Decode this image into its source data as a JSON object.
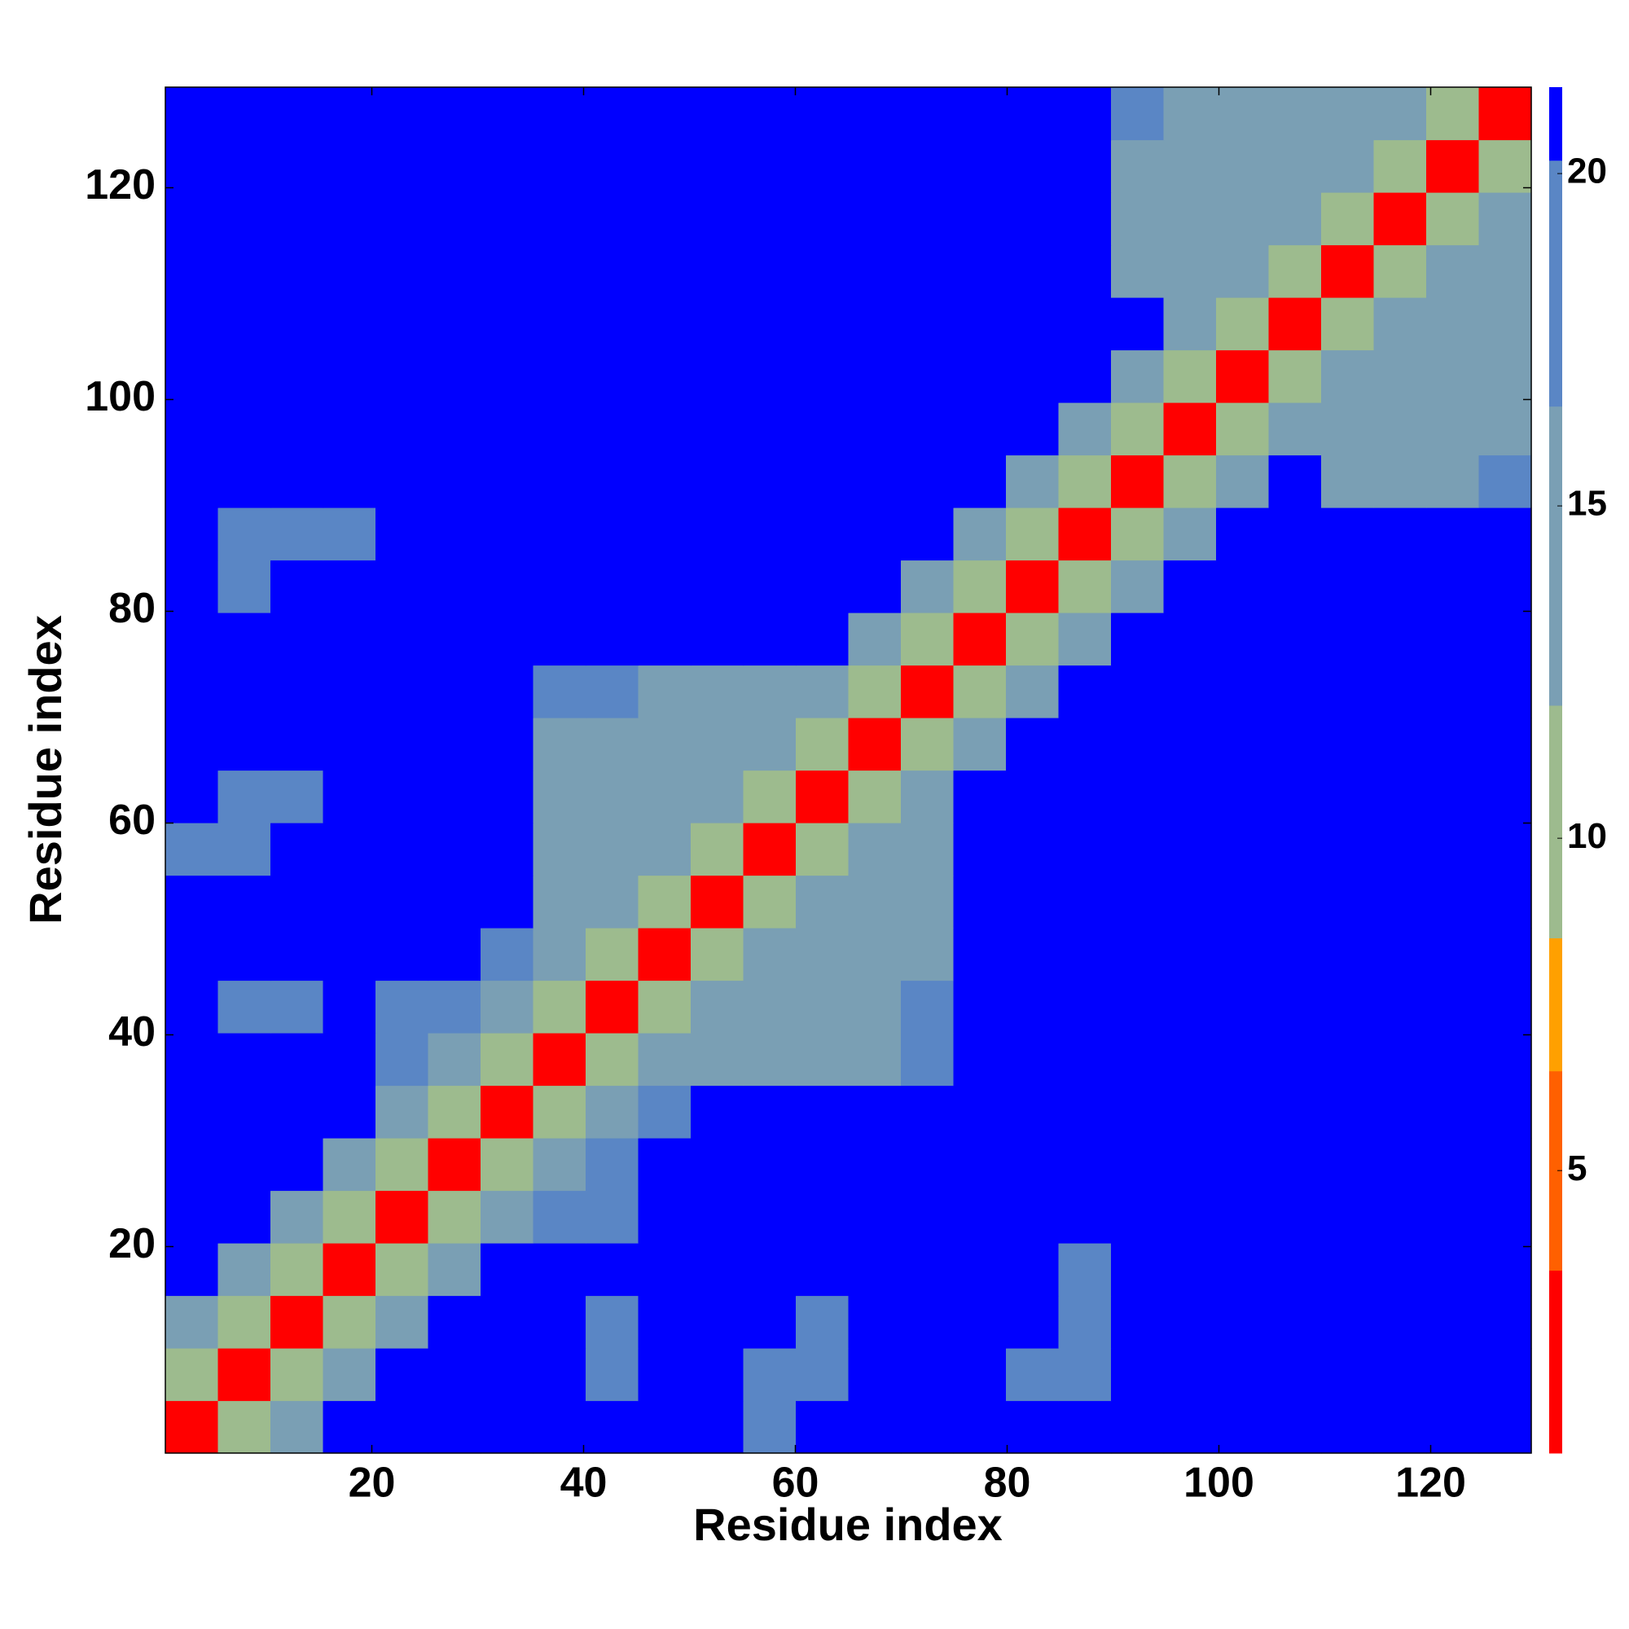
{
  "chart_data": {
    "type": "heatmap",
    "x_label": "Residue index",
    "y_label": "Residue index",
    "xlim": [
      0.5,
      129.5
    ],
    "ylim": [
      0.5,
      129.5
    ],
    "xticks": [
      20,
      40,
      60,
      80,
      100,
      120
    ],
    "yticks": [
      20,
      40,
      60,
      80,
      100,
      120
    ],
    "color_bounds": [
      0.75,
      3.5,
      6.5,
      8.5,
      12,
      16.5,
      20.2,
      21.3
    ],
    "colors": [
      "#ff0000",
      "#ff6000",
      "#ffa000",
      "#9dbb8e",
      "#7a9fb4",
      "#5a86c5",
      "#0000ff"
    ],
    "cticks": [
      5,
      10,
      15,
      20
    ],
    "values": [
      [
        3,
        9,
        16,
        22,
        22,
        22,
        22,
        22,
        22,
        22,
        22,
        20,
        22,
        22,
        22,
        22,
        22,
        22,
        22,
        22,
        22,
        22,
        22,
        22,
        22,
        22
      ],
      [
        9,
        3,
        9,
        16,
        22,
        22,
        22,
        22,
        19,
        22,
        22,
        19,
        19,
        22,
        22,
        22,
        18,
        20,
        22,
        22,
        22,
        22,
        22,
        22,
        22,
        22
      ],
      [
        16,
        9,
        3,
        9,
        16,
        22,
        22,
        22,
        20,
        22,
        22,
        22,
        19,
        22,
        22,
        22,
        22,
        19,
        22,
        22,
        22,
        22,
        22,
        22,
        22,
        22
      ],
      [
        22,
        16,
        9,
        3,
        9,
        16,
        22,
        22,
        22,
        22,
        22,
        22,
        22,
        22,
        22,
        22,
        22,
        19,
        22,
        22,
        22,
        22,
        22,
        22,
        22,
        22
      ],
      [
        22,
        22,
        16,
        9,
        3,
        9,
        13,
        18,
        20,
        22,
        22,
        22,
        22,
        22,
        22,
        22,
        22,
        22,
        22,
        22,
        22,
        22,
        22,
        22,
        22,
        22
      ],
      [
        22,
        22,
        22,
        16,
        9,
        3,
        9,
        13,
        18,
        22,
        22,
        22,
        22,
        22,
        22,
        22,
        22,
        22,
        22,
        22,
        22,
        22,
        22,
        22,
        22,
        22
      ],
      [
        22,
        22,
        22,
        22,
        13,
        9,
        3,
        9,
        13,
        18,
        22,
        22,
        22,
        22,
        22,
        22,
        22,
        22,
        22,
        22,
        22,
        22,
        22,
        22,
        22,
        22
      ],
      [
        22,
        22,
        22,
        22,
        18,
        13,
        9,
        3,
        9,
        13,
        15,
        14,
        14,
        16,
        19,
        22,
        22,
        22,
        22,
        22,
        22,
        22,
        22,
        22,
        22,
        22
      ],
      [
        22,
        19,
        20,
        22,
        20,
        18,
        13,
        9,
        3,
        9,
        13,
        13,
        12,
        14,
        18,
        22,
        22,
        22,
        22,
        22,
        22,
        22,
        22,
        22,
        22,
        22
      ],
      [
        22,
        22,
        22,
        22,
        22,
        22,
        18,
        13,
        9,
        3,
        9,
        13,
        13,
        14,
        16,
        22,
        22,
        22,
        22,
        22,
        22,
        22,
        22,
        22,
        22,
        22
      ],
      [
        22,
        22,
        22,
        22,
        22,
        22,
        22,
        15,
        13,
        9,
        3,
        9,
        16,
        14,
        15,
        22,
        22,
        22,
        22,
        22,
        22,
        22,
        22,
        22,
        22,
        22
      ],
      [
        20,
        19,
        22,
        22,
        22,
        22,
        22,
        14,
        13,
        13,
        9,
        3,
        9,
        16,
        16,
        22,
        22,
        22,
        22,
        22,
        22,
        22,
        22,
        22,
        22,
        22
      ],
      [
        22,
        19,
        19,
        22,
        22,
        22,
        22,
        14,
        12,
        13,
        16,
        9,
        3,
        9,
        16,
        22,
        22,
        22,
        22,
        22,
        22,
        22,
        22,
        22,
        22,
        22
      ],
      [
        22,
        22,
        22,
        22,
        22,
        22,
        22,
        16,
        14,
        14,
        14,
        16,
        9,
        3,
        9,
        16,
        22,
        22,
        22,
        22,
        22,
        22,
        22,
        22,
        22,
        22
      ],
      [
        22,
        22,
        22,
        22,
        22,
        22,
        22,
        19,
        18,
        16,
        15,
        16,
        16,
        9,
        3,
        9,
        16,
        22,
        22,
        22,
        22,
        22,
        22,
        22,
        22,
        22
      ],
      [
        22,
        22,
        22,
        22,
        22,
        22,
        22,
        22,
        22,
        22,
        22,
        22,
        22,
        16,
        9,
        3,
        9,
        16,
        22,
        22,
        22,
        22,
        22,
        22,
        22,
        22
      ],
      [
        22,
        18,
        22,
        22,
        22,
        22,
        22,
        22,
        22,
        22,
        22,
        22,
        22,
        22,
        16,
        9,
        3,
        9,
        16,
        22,
        22,
        22,
        22,
        22,
        22,
        22
      ],
      [
        22,
        20,
        19,
        19,
        22,
        22,
        22,
        22,
        22,
        22,
        22,
        22,
        22,
        22,
        22,
        16,
        9,
        3,
        9,
        16,
        22,
        22,
        22,
        22,
        22,
        22
      ],
      [
        22,
        22,
        22,
        22,
        22,
        22,
        22,
        22,
        22,
        22,
        22,
        22,
        22,
        22,
        22,
        22,
        16,
        9,
        3,
        9,
        16,
        22,
        16,
        15,
        15,
        17
      ],
      [
        22,
        22,
        22,
        22,
        22,
        22,
        22,
        22,
        22,
        22,
        22,
        22,
        22,
        22,
        22,
        22,
        22,
        16,
        9,
        3,
        9,
        16,
        15,
        14,
        15,
        16
      ],
      [
        22,
        22,
        22,
        22,
        22,
        22,
        22,
        22,
        22,
        22,
        22,
        22,
        22,
        22,
        22,
        22,
        22,
        22,
        16,
        9,
        3,
        9,
        16,
        14,
        15,
        16
      ],
      [
        22,
        22,
        22,
        22,
        22,
        22,
        22,
        22,
        22,
        22,
        22,
        22,
        22,
        22,
        22,
        22,
        22,
        22,
        22,
        16,
        9,
        3,
        9,
        16,
        15,
        16
      ],
      [
        22,
        22,
        22,
        22,
        22,
        22,
        22,
        22,
        22,
        22,
        22,
        22,
        22,
        22,
        22,
        22,
        22,
        22,
        16,
        15,
        16,
        9,
        3,
        9,
        16,
        16
      ],
      [
        22,
        22,
        22,
        22,
        22,
        22,
        22,
        22,
        22,
        22,
        22,
        22,
        22,
        22,
        22,
        22,
        22,
        22,
        15,
        14,
        14,
        16,
        9,
        3,
        9,
        16
      ],
      [
        22,
        22,
        22,
        22,
        22,
        22,
        22,
        22,
        22,
        22,
        22,
        22,
        22,
        22,
        22,
        22,
        22,
        22,
        15,
        15,
        15,
        15,
        16,
        9,
        3,
        9
      ],
      [
        22,
        22,
        22,
        22,
        22,
        22,
        22,
        22,
        22,
        22,
        22,
        22,
        22,
        22,
        22,
        22,
        22,
        22,
        17,
        16,
        16,
        16,
        16,
        16,
        9,
        3
      ]
    ]
  }
}
